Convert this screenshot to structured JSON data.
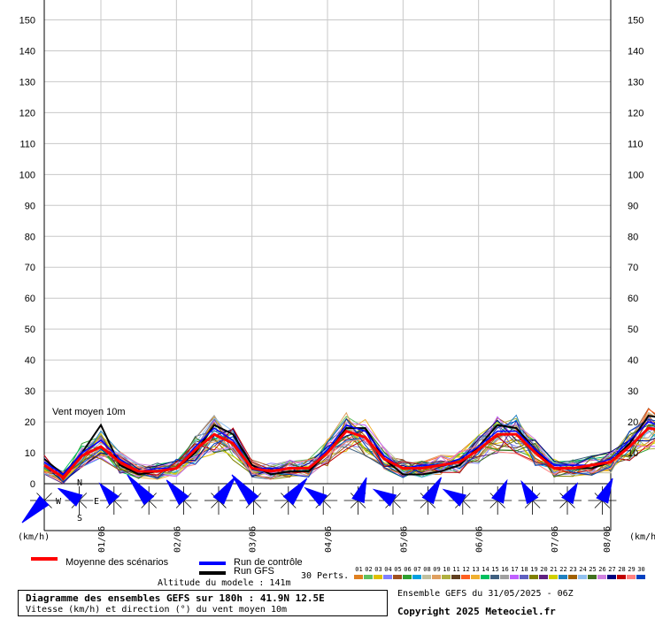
{
  "chart_data": {
    "type": "line",
    "title": "Diagramme des ensembles GEFS sur 180h : 41.9N 12.5E",
    "subtitle": "Vitesse (km/h) et direction (°) du vent moyen 10m",
    "panel_label": "Vent moyen 10m",
    "unit_left": "(km/h)",
    "unit_right": "(km/h)",
    "ylim": [
      0,
      155
    ],
    "yticks": [
      0,
      10,
      20,
      30,
      40,
      50,
      60,
      70,
      80,
      90,
      100,
      110,
      120,
      130,
      140,
      150
    ],
    "xlim": [
      0,
      180
    ],
    "x_step_hours": 6,
    "xticks": [
      {
        "label": "01/06",
        "hour": 18
      },
      {
        "label": "02/06",
        "hour": 42
      },
      {
        "label": "03/06",
        "hour": 66
      },
      {
        "label": "04/06",
        "hour": 90
      },
      {
        "label": "05/06",
        "hour": 114
      },
      {
        "label": "06/06",
        "hour": 138
      },
      {
        "label": "07/06",
        "hour": 162
      },
      {
        "label": "08/06",
        "hour": 186
      }
    ],
    "series": [
      {
        "name": "Moyenne des scénarios",
        "color": "#ff0000",
        "values": [
          6,
          2,
          9,
          12,
          7,
          4,
          4,
          5,
          11,
          16,
          13,
          5,
          4,
          5,
          5,
          10,
          17,
          15,
          8,
          5,
          5,
          6,
          7,
          11,
          16,
          16,
          10,
          5,
          5,
          6,
          7,
          12,
          18,
          17,
          10,
          5,
          5,
          6,
          7,
          12,
          16,
          15,
          9,
          5,
          5,
          6,
          6,
          11,
          16,
          17,
          9,
          5,
          5,
          6,
          7,
          11,
          16,
          16,
          8,
          5,
          4
        ]
      },
      {
        "name": "Run de contrôle",
        "color": "#0000ff",
        "values": [
          7,
          3,
          10,
          14,
          8,
          4,
          5,
          5,
          12,
          18,
          14,
          5,
          5,
          5,
          5,
          11,
          19,
          17,
          9,
          5,
          6,
          6,
          8,
          12,
          17,
          17,
          11,
          6,
          6,
          6,
          8,
          14,
          20,
          18,
          11,
          6,
          6,
          6,
          8,
          13,
          18,
          16,
          10,
          6,
          6,
          7,
          7,
          13,
          19,
          18,
          10,
          6,
          5,
          6,
          8,
          12,
          18,
          17,
          9,
          5,
          5
        ]
      },
      {
        "name": "Run GFS",
        "color": "#000000",
        "values": [
          8,
          3,
          10,
          19,
          6,
          3,
          4,
          5,
          10,
          19,
          16,
          6,
          3,
          4,
          4,
          10,
          18,
          18,
          8,
          3,
          3,
          4,
          6,
          12,
          19,
          18,
          11,
          5,
          5,
          5,
          7,
          13,
          22,
          21,
          12,
          5,
          4,
          5,
          6,
          12,
          18,
          16,
          9,
          5,
          5,
          6,
          5,
          12,
          18,
          20,
          10,
          4,
          4,
          5,
          6,
          11,
          18,
          18,
          8,
          4,
          17
        ]
      }
    ],
    "wind_arrows": [
      {
        "dir": 225,
        "len": 0.9
      },
      {
        "dir": 300,
        "len": 0.6
      },
      {
        "dir": 320,
        "len": 0.5
      },
      {
        "dir": 320,
        "len": 1.0
      },
      {
        "dir": 320,
        "len": 0.7
      },
      {
        "dir": 35,
        "len": 0.8
      },
      {
        "dir": 320,
        "len": 1.0
      },
      {
        "dir": 40,
        "len": 0.8
      },
      {
        "dir": 305,
        "len": 0.5
      },
      {
        "dir": 20,
        "len": 0.6
      },
      {
        "dir": 300,
        "len": 0.5
      },
      {
        "dir": 30,
        "len": 0.7
      },
      {
        "dir": 300,
        "len": 0.5
      },
      {
        "dir": 25,
        "len": 0.5
      },
      {
        "dir": 330,
        "len": 0.5
      },
      {
        "dir": 30,
        "len": 0.4
      },
      {
        "dir": 25,
        "len": 0.6
      }
    ],
    "compass": {
      "n": "N",
      "s": "S",
      "e": "E",
      "w": "W"
    }
  },
  "legend": {
    "mean_label": "Moyenne des scénarios",
    "control_label": "Run de contrôle",
    "gfs_label": "Run GFS",
    "mean_color": "#ff0000",
    "control_color": "#0000ff",
    "gfs_color": "#000000",
    "altitude": "Altitude du modele : 141m",
    "perts_label": "30 Perts.",
    "perts": [
      "01",
      "02",
      "03",
      "04",
      "05",
      "06",
      "07",
      "08",
      "09",
      "10",
      "11",
      "12",
      "13",
      "14",
      "15",
      "16",
      "17",
      "18",
      "19",
      "20",
      "21",
      "22",
      "23",
      "24",
      "25",
      "26",
      "27",
      "28",
      "29",
      "30"
    ],
    "pert_colors": [
      "#e08020",
      "#60c060",
      "#e0c000",
      "#8080ff",
      "#a05020",
      "#30a030",
      "#00a0e0",
      "#c0c0a0",
      "#e0a060",
      "#b0b040",
      "#604020",
      "#ff6020",
      "#f0b030",
      "#00c060",
      "#406080",
      "#a0a0a0",
      "#c060ff",
      "#6060c0",
      "#808000",
      "#602080",
      "#d0d000",
      "#2080c0",
      "#a06000",
      "#90c0f0",
      "#407020",
      "#d080e0",
      "#000080",
      "#c00000",
      "#ff8080",
      "#0040c0"
    ]
  },
  "footer": {
    "run_info": "Ensemble GEFS du 31/05/2025 - 06Z",
    "copyright": "Copyright 2025 Meteociel.fr"
  }
}
